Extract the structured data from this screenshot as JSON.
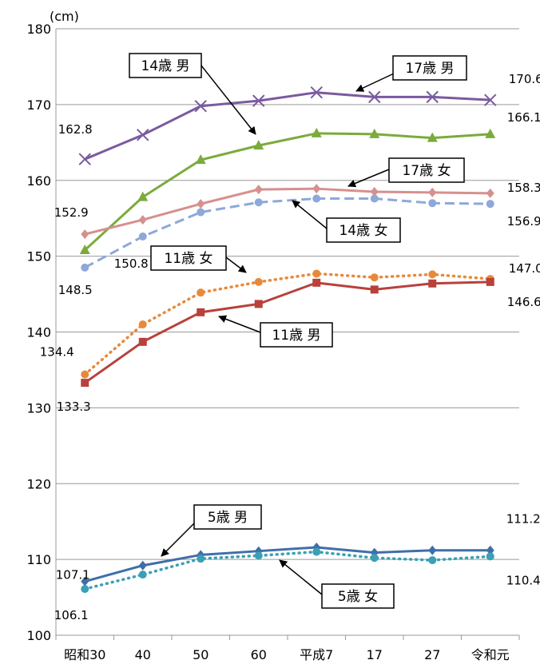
{
  "chart_data": {
    "type": "line",
    "ylabel": "(cm)",
    "ylim": [
      100,
      180
    ],
    "yticks": [
      100,
      110,
      120,
      130,
      140,
      150,
      160,
      170,
      180
    ],
    "categories": [
      "昭和30",
      "40",
      "50",
      "60",
      "平成7",
      "17",
      "27",
      "令和元"
    ],
    "grid": "horizontal",
    "series": [
      {
        "name": "17歳 男",
        "color": "#7a5aa0",
        "marker": "x",
        "dash": "solid",
        "values": [
          162.8,
          166.0,
          169.8,
          170.5,
          171.6,
          171.0,
          171.0,
          170.6
        ]
      },
      {
        "name": "14歳 男",
        "color": "#7aab3c",
        "marker": "triangle",
        "dash": "solid",
        "values": [
          150.8,
          157.8,
          162.7,
          164.6,
          166.2,
          166.1,
          165.6,
          166.1
        ]
      },
      {
        "name": "17歳 女",
        "color": "#d6908e",
        "marker": "diamond",
        "dash": "solid",
        "values": [
          152.9,
          154.8,
          156.9,
          158.8,
          158.9,
          158.5,
          158.4,
          158.3
        ]
      },
      {
        "name": "14歳 女",
        "color": "#8ea8d8",
        "marker": "circle",
        "dash": "dashed",
        "values": [
          148.5,
          152.6,
          155.8,
          157.1,
          157.6,
          157.6,
          157.0,
          156.9
        ]
      },
      {
        "name": "11歳 女",
        "color": "#e8893a",
        "marker": "circle",
        "dash": "dotted",
        "values": [
          134.4,
          141.0,
          145.2,
          146.6,
          147.7,
          147.2,
          147.6,
          147.0
        ]
      },
      {
        "name": "11歳 男",
        "color": "#b8413c",
        "marker": "square",
        "dash": "solid",
        "values": [
          133.3,
          138.7,
          142.6,
          143.7,
          146.5,
          145.6,
          146.4,
          146.6
        ]
      },
      {
        "name": "5歳 男",
        "color": "#3f6fa8",
        "marker": "diamond",
        "dash": "solid",
        "values": [
          107.1,
          109.2,
          110.6,
          111.1,
          111.6,
          110.9,
          111.2,
          111.2
        ]
      },
      {
        "name": "5歳 女",
        "color": "#3aa0b5",
        "marker": "circle",
        "dash": "dotted",
        "values": [
          106.1,
          108.0,
          110.1,
          110.5,
          111.0,
          110.2,
          109.9,
          110.4
        ]
      }
    ],
    "data_labels": [
      {
        "text": "170.6",
        "series": 0,
        "index": 7
      },
      {
        "text": "162.8",
        "series": 0,
        "index": 0
      },
      {
        "text": "166.1",
        "series": 1,
        "index": 7
      },
      {
        "text": "150.8",
        "series": 1,
        "index": 0
      },
      {
        "text": "158.3",
        "series": 2,
        "index": 7
      },
      {
        "text": "152.9",
        "series": 2,
        "index": 0
      },
      {
        "text": "156.9",
        "series": 3,
        "index": 7
      },
      {
        "text": "148.5",
        "series": 3,
        "index": 0
      },
      {
        "text": "147.0",
        "series": 4,
        "index": 7
      },
      {
        "text": "134.4",
        "series": 4,
        "index": 0
      },
      {
        "text": "146.6",
        "series": 5,
        "index": 7
      },
      {
        "text": "133.3",
        "series": 5,
        "index": 0
      },
      {
        "text": "111.2",
        "series": 6,
        "index": 7
      },
      {
        "text": "107.1",
        "series": 6,
        "index": 0
      },
      {
        "text": "110.4",
        "series": 7,
        "index": 7
      },
      {
        "text": "106.1",
        "series": 7,
        "index": 0
      }
    ]
  }
}
